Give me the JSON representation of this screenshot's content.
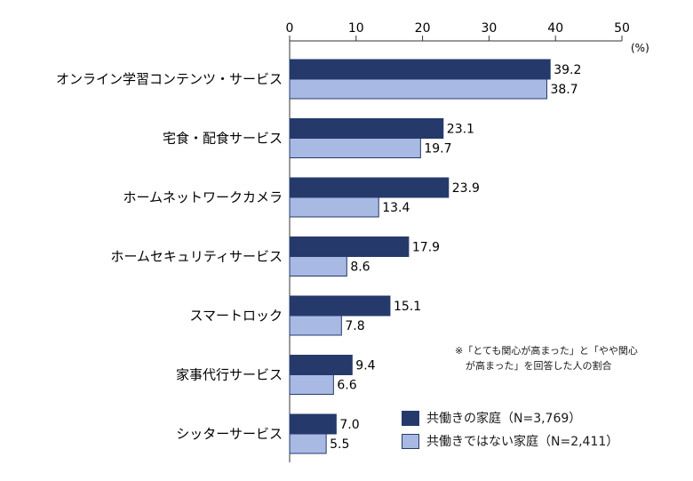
{
  "chart_data": {
    "type": "bar",
    "orientation": "horizontal",
    "unit": "(%)",
    "xlim": [
      0,
      50
    ],
    "xticks": [
      0,
      10,
      20,
      30,
      40,
      50
    ],
    "categories": [
      "オンライン学習コンテンツ・サービス",
      "宅食・配食サービス",
      "ホームネットワークカメラ",
      "ホームセキュリティサービス",
      "スマートロック",
      "家事代行サービス",
      "シッターサービス"
    ],
    "series": [
      {
        "name": "共働きの家庭（N=3,769）",
        "color": "#253a6b",
        "values": [
          39.2,
          23.1,
          23.9,
          17.9,
          15.1,
          9.4,
          7.0
        ],
        "labels": [
          "39.2",
          "23.1",
          "23.9",
          "17.9",
          "15.1",
          "9.4",
          "7.0"
        ]
      },
      {
        "name": "共働きではない家庭（N=2,411）",
        "color": "#a8b9e4",
        "values": [
          38.7,
          19.7,
          13.4,
          8.6,
          7.8,
          6.6,
          5.5
        ],
        "labels": [
          "38.7",
          "19.7",
          "13.4",
          "8.6",
          "7.8",
          "6.6",
          "5.5"
        ]
      }
    ],
    "note": [
      "※「とても関心が高まった」と「やや関心",
      "が高まった」を回答した人の割合"
    ],
    "legend_position": "bottom-right"
  }
}
